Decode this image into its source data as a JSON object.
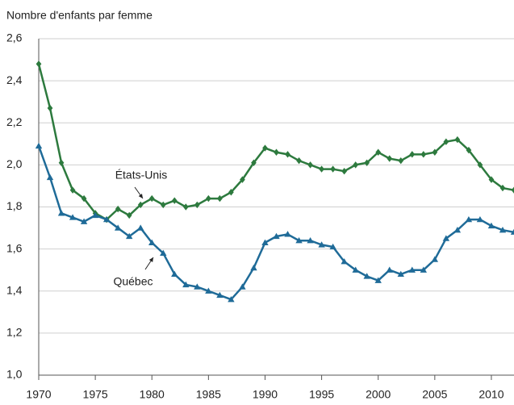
{
  "chart_data": {
    "type": "line",
    "y_label": "Nombre d'enfants par femme",
    "x": [
      1970,
      1971,
      1972,
      1973,
      1974,
      1975,
      1976,
      1977,
      1978,
      1979,
      1980,
      1981,
      1982,
      1983,
      1984,
      1985,
      1986,
      1987,
      1988,
      1989,
      1990,
      1991,
      1992,
      1993,
      1994,
      1995,
      1996,
      1997,
      1998,
      1999,
      2000,
      2001,
      2002,
      2003,
      2004,
      2005,
      2006,
      2007,
      2008,
      2009,
      2010,
      2011,
      2012
    ],
    "series": [
      {
        "name": "États-Unis",
        "color": "#2d7a3e",
        "marker": "diamond",
        "values": [
          2.48,
          2.27,
          2.01,
          1.88,
          1.84,
          1.77,
          1.74,
          1.79,
          1.76,
          1.81,
          1.84,
          1.81,
          1.83,
          1.8,
          1.81,
          1.84,
          1.84,
          1.87,
          1.93,
          2.01,
          2.08,
          2.06,
          2.05,
          2.02,
          2.0,
          1.98,
          1.98,
          1.97,
          2.0,
          2.01,
          2.06,
          2.03,
          2.02,
          2.05,
          2.05,
          2.06,
          2.11,
          2.12,
          2.07,
          2.0,
          1.93,
          1.89,
          1.88
        ]
      },
      {
        "name": "Québec",
        "color": "#1f6b98",
        "marker": "triangle",
        "values": [
          2.09,
          1.94,
          1.77,
          1.75,
          1.73,
          1.76,
          1.74,
          1.7,
          1.66,
          1.7,
          1.63,
          1.58,
          1.48,
          1.43,
          1.42,
          1.4,
          1.38,
          1.36,
          1.42,
          1.51,
          1.63,
          1.66,
          1.67,
          1.64,
          1.64,
          1.62,
          1.61,
          1.54,
          1.5,
          1.47,
          1.45,
          1.5,
          1.48,
          1.5,
          1.5,
          1.55,
          1.65,
          1.69,
          1.74,
          1.74,
          1.71,
          1.69,
          1.68
        ]
      }
    ],
    "xlim": [
      1970,
      2012
    ],
    "xticks": [
      1970,
      1975,
      1980,
      1985,
      1990,
      1995,
      2000,
      2005,
      2010
    ],
    "ylim": [
      1.0,
      2.6
    ],
    "yticks": [
      {
        "value": 1.0,
        "label": "1,0"
      },
      {
        "value": 1.2,
        "label": "1,2"
      },
      {
        "value": 1.4,
        "label": "1,4"
      },
      {
        "value": 1.6,
        "label": "1,6"
      },
      {
        "value": 1.8,
        "label": "1,8"
      },
      {
        "value": 2.0,
        "label": "2,0"
      },
      {
        "value": 2.2,
        "label": "2,2"
      },
      {
        "value": 2.4,
        "label": "2,4"
      },
      {
        "value": 2.6,
        "label": "2,6"
      }
    ],
    "grid": true
  }
}
